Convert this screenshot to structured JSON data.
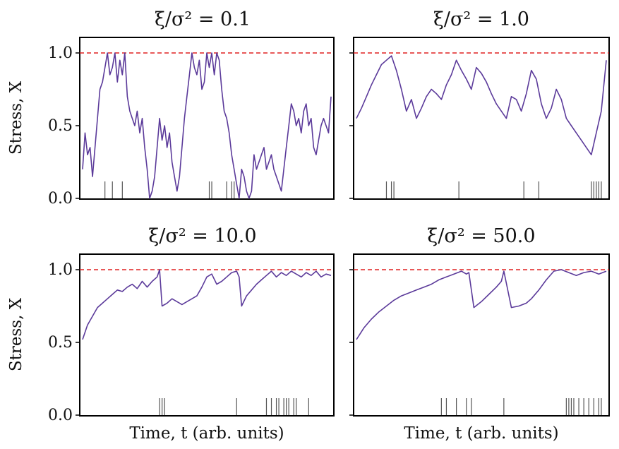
{
  "figure": {
    "ylabel": "Stress, X",
    "xlabel": "Time, t (arb. units)"
  },
  "chart_data": [
    {
      "type": "line",
      "title": "ξ/σ² = 0.1",
      "ylim": [
        0,
        1
      ],
      "xlim": [
        0,
        100
      ],
      "yticks": [
        "0.0",
        "0.5",
        "1.0"
      ],
      "threshold": 1.0,
      "series_color": "#5b3a9a",
      "threshold_color": "#e02020",
      "x": [
        0,
        1,
        2,
        3,
        4,
        6,
        7,
        8,
        9,
        10,
        11,
        12,
        13,
        14,
        15,
        16,
        17,
        18,
        19,
        20,
        21,
        22,
        23,
        24,
        25,
        26,
        27,
        28,
        29,
        30,
        31,
        32,
        33,
        34,
        35,
        36,
        37,
        38,
        39,
        40,
        41,
        42,
        43,
        44,
        45,
        46,
        47,
        48,
        49,
        50,
        51,
        52,
        53,
        54,
        55,
        56,
        57,
        58,
        59,
        60,
        61,
        62,
        63,
        64,
        65,
        66,
        67,
        68,
        69,
        70,
        71,
        72,
        73,
        74,
        75,
        76,
        77,
        78,
        79,
        80,
        81,
        82,
        83,
        84,
        85,
        86,
        87,
        88,
        89,
        90,
        91,
        92,
        93,
        94,
        95,
        96,
        97,
        98,
        99,
        100
      ],
      "y": [
        0.2,
        0.45,
        0.3,
        0.35,
        0.15,
        0.55,
        0.75,
        0.8,
        0.9,
        1.0,
        0.85,
        0.9,
        1.0,
        0.8,
        0.95,
        0.85,
        1.0,
        0.7,
        0.6,
        0.55,
        0.5,
        0.6,
        0.45,
        0.55,
        0.35,
        0.2,
        0.0,
        0.05,
        0.15,
        0.35,
        0.55,
        0.4,
        0.5,
        0.35,
        0.45,
        0.25,
        0.15,
        0.05,
        0.15,
        0.35,
        0.55,
        0.7,
        0.85,
        1.0,
        0.9,
        0.85,
        0.95,
        0.75,
        0.8,
        1.0,
        0.9,
        1.0,
        0.85,
        1.0,
        0.95,
        0.75,
        0.6,
        0.55,
        0.45,
        0.3,
        0.2,
        0.1,
        0.0,
        0.2,
        0.15,
        0.05,
        0.0,
        0.05,
        0.3,
        0.2,
        0.25,
        0.3,
        0.35,
        0.2,
        0.25,
        0.3,
        0.2,
        0.15,
        0.1,
        0.05,
        0.2,
        0.35,
        0.5,
        0.65,
        0.6,
        0.5,
        0.55,
        0.45,
        0.6,
        0.65,
        0.5,
        0.55,
        0.35,
        0.3,
        0.4,
        0.5,
        0.55,
        0.5,
        0.45,
        0.7
      ],
      "events": [
        9,
        12,
        16,
        51,
        52,
        58,
        60,
        61
      ]
    },
    {
      "type": "line",
      "title": "ξ/σ² = 1.0",
      "ylim": [
        0,
        1
      ],
      "xlim": [
        0,
        100
      ],
      "yticks": [
        "0.0",
        "0.5",
        "1.0"
      ],
      "threshold": 1.0,
      "series_color": "#5b3a9a",
      "threshold_color": "#e02020",
      "x": [
        0,
        2,
        4,
        6,
        8,
        10,
        12,
        14,
        16,
        18,
        20,
        22,
        24,
        26,
        28,
        30,
        32,
        34,
        36,
        38,
        40,
        42,
        44,
        46,
        48,
        50,
        52,
        54,
        56,
        58,
        60,
        62,
        64,
        66,
        68,
        70,
        72,
        74,
        76,
        78,
        80,
        82,
        84,
        86,
        88,
        90,
        92,
        94,
        96,
        98,
        100
      ],
      "y": [
        0.55,
        0.62,
        0.7,
        0.78,
        0.85,
        0.92,
        0.95,
        0.98,
        0.88,
        0.75,
        0.6,
        0.68,
        0.55,
        0.62,
        0.7,
        0.75,
        0.72,
        0.68,
        0.78,
        0.85,
        0.95,
        0.88,
        0.82,
        0.75,
        0.9,
        0.86,
        0.8,
        0.72,
        0.65,
        0.6,
        0.55,
        0.7,
        0.68,
        0.6,
        0.72,
        0.88,
        0.82,
        0.65,
        0.55,
        0.62,
        0.75,
        0.68,
        0.55,
        0.5,
        0.45,
        0.4,
        0.35,
        0.3,
        0.45,
        0.6,
        0.95
      ],
      "events": [
        12,
        14,
        15,
        41,
        67,
        73,
        94,
        95,
        96,
        97,
        98
      ]
    },
    {
      "type": "line",
      "title": "ξ/σ² = 10.0",
      "ylim": [
        0,
        1
      ],
      "xlim": [
        0,
        100
      ],
      "yticks": [
        "0.0",
        "0.5",
        "1.0"
      ],
      "threshold": 1.0,
      "series_color": "#5b3a9a",
      "threshold_color": "#e02020",
      "x": [
        0,
        2,
        4,
        6,
        8,
        10,
        12,
        14,
        16,
        18,
        20,
        22,
        24,
        26,
        28,
        30,
        31,
        32,
        34,
        36,
        38,
        40,
        42,
        44,
        46,
        48,
        50,
        52,
        54,
        56,
        58,
        60,
        62,
        63,
        64,
        66,
        68,
        70,
        72,
        74,
        76,
        78,
        80,
        82,
        84,
        86,
        88,
        90,
        92,
        94,
        96,
        98,
        100
      ],
      "y": [
        0.52,
        0.62,
        0.68,
        0.74,
        0.77,
        0.8,
        0.83,
        0.86,
        0.85,
        0.88,
        0.9,
        0.87,
        0.92,
        0.88,
        0.92,
        0.95,
        1.0,
        0.75,
        0.77,
        0.8,
        0.78,
        0.76,
        0.78,
        0.8,
        0.82,
        0.88,
        0.95,
        0.97,
        0.9,
        0.92,
        0.95,
        0.98,
        0.99,
        0.95,
        0.75,
        0.82,
        0.86,
        0.9,
        0.93,
        0.96,
        0.99,
        0.95,
        0.98,
        0.96,
        0.99,
        0.97,
        0.95,
        0.98,
        0.96,
        0.99,
        0.95,
        0.97,
        0.96
      ],
      "events": [
        31,
        32,
        33,
        62,
        74,
        76,
        78,
        79,
        81,
        82,
        83,
        85,
        86,
        91
      ]
    },
    {
      "type": "line",
      "title": "ξ/σ² = 50.0",
      "ylim": [
        0,
        1
      ],
      "xlim": [
        0,
        100
      ],
      "yticks": [
        "0.0",
        "0.5",
        "1.0"
      ],
      "threshold": 1.0,
      "series_color": "#5b3a9a",
      "threshold_color": "#e02020",
      "x": [
        0,
        3,
        6,
        9,
        12,
        15,
        18,
        21,
        24,
        27,
        30,
        33,
        36,
        39,
        42,
        44,
        45,
        47,
        50,
        53,
        56,
        58,
        59,
        62,
        65,
        68,
        70,
        73,
        76,
        79,
        82,
        85,
        88,
        91,
        94,
        97,
        100
      ],
      "y": [
        0.52,
        0.6,
        0.66,
        0.71,
        0.75,
        0.79,
        0.82,
        0.84,
        0.86,
        0.88,
        0.9,
        0.93,
        0.95,
        0.97,
        0.99,
        0.97,
        0.98,
        0.74,
        0.78,
        0.83,
        0.88,
        0.92,
        0.99,
        0.74,
        0.75,
        0.77,
        0.8,
        0.86,
        0.93,
        0.99,
        1.0,
        0.98,
        0.96,
        0.98,
        0.99,
        0.97,
        0.99
      ],
      "events": [
        34,
        36,
        40,
        44,
        46,
        59,
        84,
        85,
        86,
        87,
        89,
        91,
        93,
        95,
        97,
        98
      ]
    }
  ]
}
